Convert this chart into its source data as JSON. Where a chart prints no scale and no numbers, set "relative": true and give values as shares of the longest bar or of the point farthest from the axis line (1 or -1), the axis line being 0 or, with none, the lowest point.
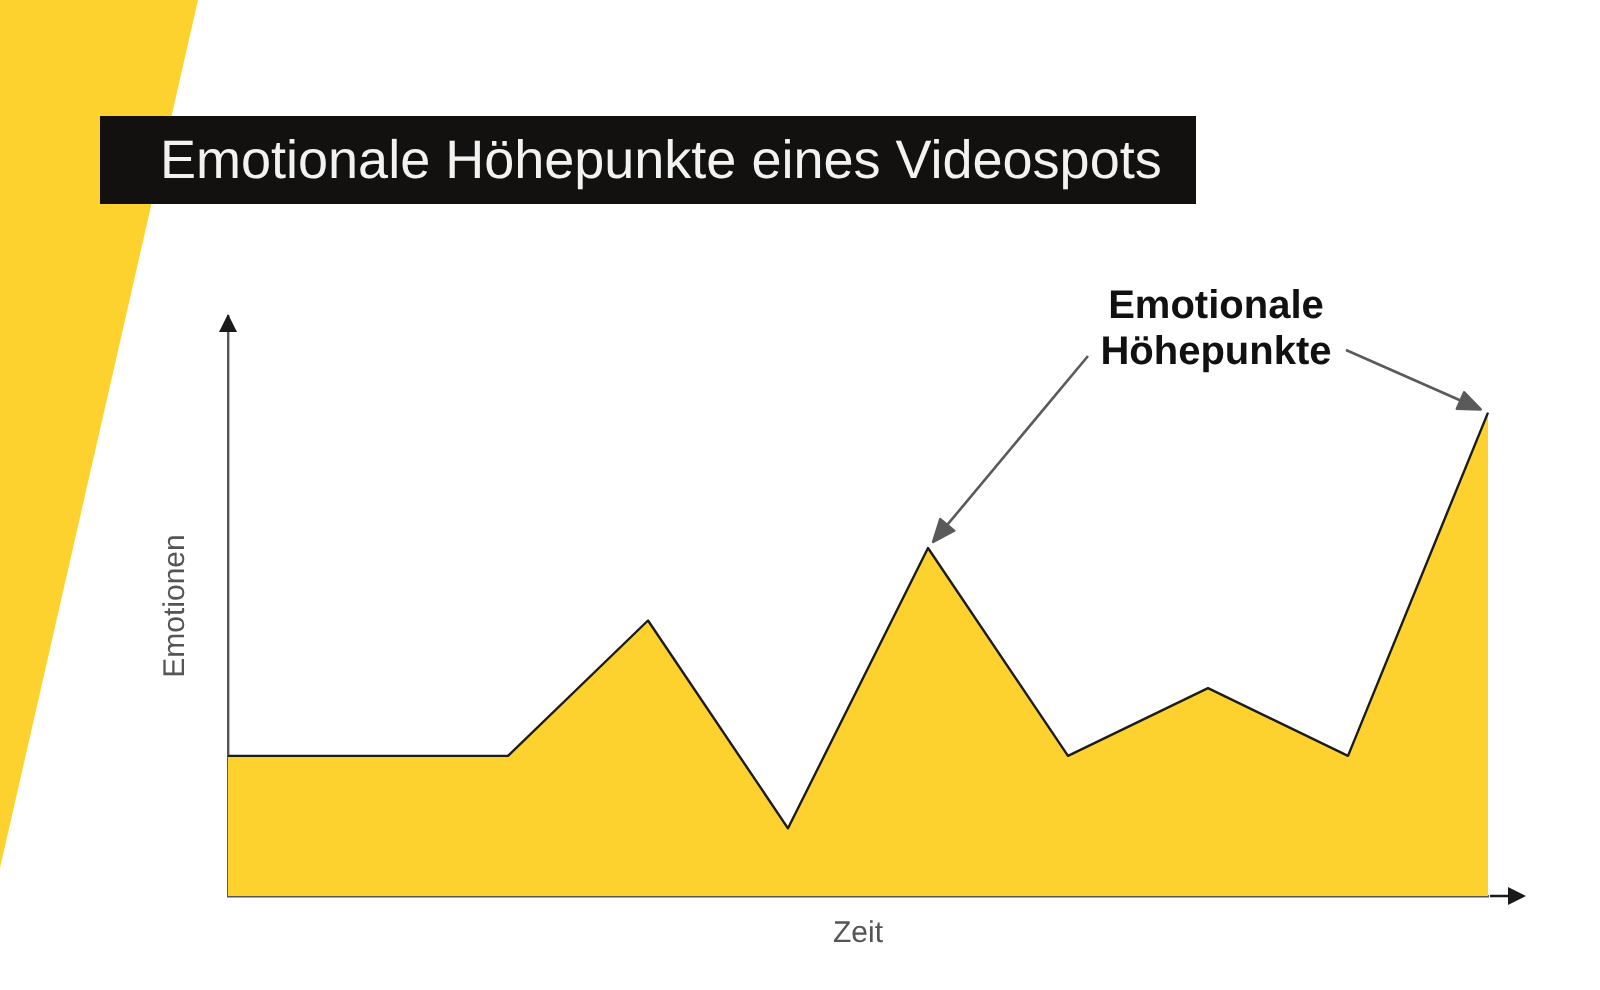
{
  "chart_data": {
    "type": "area",
    "title": "Emotionale Höhepunkte eines Videospots",
    "xlabel": "Zeit",
    "ylabel": "Emotionen",
    "annotations": [
      "Emotionale Höhepunkte"
    ],
    "categories": [
      null,
      null,
      null,
      null,
      null,
      null,
      null,
      null,
      null,
      null
    ],
    "values": [
      0.29,
      0.29,
      0.29,
      0.57,
      0.14,
      0.72,
      0.29,
      0.43,
      0.29,
      1
    ],
    "color": "#fdd22f",
    "relative": true,
    "marker": "none"
  }
}
